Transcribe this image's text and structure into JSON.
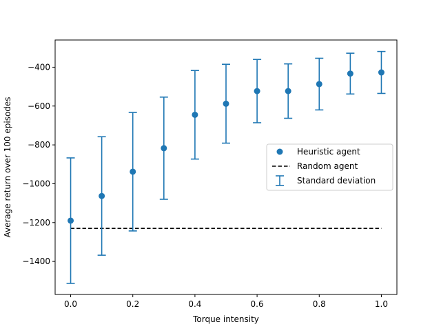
{
  "chart_data": {
    "type": "scatter",
    "title": "",
    "xlabel": "Torque intensity",
    "ylabel": "Average return over 100 episodes",
    "xlim": [
      -0.05,
      1.05
    ],
    "ylim": [
      -1570,
      -260
    ],
    "xticks": [
      0.0,
      0.2,
      0.4,
      0.6,
      0.8,
      1.0
    ],
    "xtick_labels": [
      "0.0",
      "0.2",
      "0.4",
      "0.6",
      "0.8",
      "1.0"
    ],
    "yticks": [
      -1400,
      -1200,
      -1000,
      -800,
      -600,
      -400
    ],
    "ytick_labels": [
      "−1400",
      "−1200",
      "−1000",
      "−800",
      "−600",
      "−400"
    ],
    "grid": false,
    "legend_position": "center-right",
    "series": [
      {
        "name": "Heuristic agent",
        "kind": "scatter",
        "color": "#1f77b4",
        "x": [
          0.0,
          0.1,
          0.2,
          0.3,
          0.4,
          0.5,
          0.6,
          0.7,
          0.8,
          0.9,
          1.0
        ],
        "y": [
          -1190,
          -1063,
          -938,
          -817,
          -645,
          -588,
          -523,
          -523,
          -487,
          -433,
          -427
        ],
        "yerr": [
          323,
          305,
          305,
          263,
          228,
          203,
          163,
          140,
          133,
          105,
          108
        ]
      },
      {
        "name": "Random agent",
        "kind": "line",
        "style": "dashed",
        "color": "#000000",
        "x": [
          0.0,
          1.0
        ],
        "y": [
          -1230,
          -1230
        ]
      }
    ],
    "legend": {
      "entries": [
        "Heuristic agent",
        "Random agent",
        "Standard deviation"
      ]
    }
  }
}
